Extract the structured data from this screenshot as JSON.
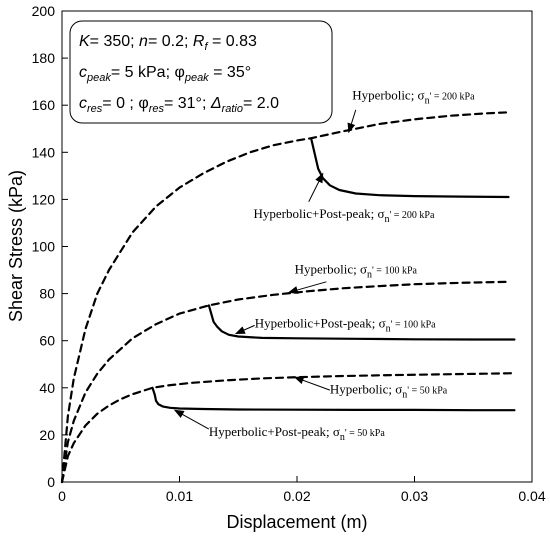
{
  "chart_data": {
    "type": "line",
    "xlabel": "Displacement (m)",
    "ylabel": "Shear Stress (kPa)",
    "xlim": [
      0,
      0.04
    ],
    "ylim": [
      0,
      200
    ],
    "x_ticks": [
      "0",
      "0.01",
      "0.02",
      "0.03",
      "0.04"
    ],
    "y_ticks": [
      "0",
      "20",
      "40",
      "60",
      "80",
      "100",
      "120",
      "140",
      "160",
      "180",
      "200"
    ],
    "grid": false,
    "legend": "none",
    "parameters": {
      "line1": {
        "K": "K",
        "K_val": "= 350; ",
        "n": "n",
        "n_val": "= 0.2; ",
        "Rf": "R",
        "Rf_sub": "f",
        "Rf_val": " = 0.83"
      },
      "line2": {
        "c": "c",
        "c_sub": "peak",
        "c_val": "= 5 kPa; ",
        "phi": "φ",
        "phi_sub": "peak",
        "phi_val": " = 35°"
      },
      "line3": {
        "c": "c",
        "c_sub": "res",
        "c_val": "= 0  ; ",
        "phi": "φ",
        "phi_sub": "res",
        "phi_val": "= 31°; ",
        "delta": "Δ",
        "delta_sub": "ratio",
        "delta_val": "= 2.0"
      }
    },
    "series": [
      {
        "name": "Hyperbolic; σn' = 200 kPa",
        "style": "dashed",
        "x": [
          0,
          0.0005,
          0.001,
          0.002,
          0.003,
          0.004,
          0.006,
          0.008,
          0.01,
          0.012,
          0.014,
          0.016,
          0.018,
          0.02,
          0.0212,
          0.024,
          0.027,
          0.03,
          0.033,
          0.036,
          0.038
        ],
        "y": [
          0,
          28,
          44,
          65,
          80,
          90,
          106,
          117,
          125,
          131,
          136,
          140,
          143,
          145,
          146,
          149,
          152,
          154,
          155.5,
          156.5,
          157
        ]
      },
      {
        "name": "Hyperbolic+Post-peak; σn' = 200 kPa",
        "style": "solid",
        "x": [
          0.0212,
          0.0218,
          0.0222,
          0.0228,
          0.0236,
          0.025,
          0.027,
          0.03,
          0.034,
          0.038
        ],
        "y": [
          146,
          133,
          129,
          126,
          124,
          122.5,
          121.8,
          121.4,
          121.2,
          121
        ]
      },
      {
        "name": "Hyperbolic; σn' = 100 kPa",
        "style": "dashed",
        "x": [
          0,
          0.0005,
          0.001,
          0.002,
          0.003,
          0.004,
          0.006,
          0.008,
          0.01,
          0.0125,
          0.015,
          0.018,
          0.021,
          0.024,
          0.027,
          0.03,
          0.034,
          0.038
        ],
        "y": [
          0,
          17,
          26,
          38,
          46,
          52,
          61,
          67,
          71.5,
          75,
          77.5,
          79.5,
          81,
          82.3,
          83.2,
          84,
          84.6,
          85
        ]
      },
      {
        "name": "Hyperbolic+Post-peak; σn' = 100 kPa",
        "style": "solid",
        "x": [
          0.0125,
          0.0129,
          0.0132,
          0.0136,
          0.0142,
          0.015,
          0.017,
          0.02,
          0.025,
          0.03,
          0.035,
          0.0385
        ],
        "y": [
          75,
          68,
          66,
          64,
          62.5,
          61.8,
          61.2,
          61,
          60.8,
          60.6,
          60.5,
          60.5
        ]
      },
      {
        "name": "Hyperbolic; σn' = 50 kPa",
        "style": "dashed",
        "x": [
          0,
          0.0005,
          0.001,
          0.002,
          0.003,
          0.004,
          0.005,
          0.006,
          0.0077,
          0.009,
          0.011,
          0.014,
          0.017,
          0.02,
          0.024,
          0.028,
          0.032,
          0.036,
          0.0385
        ],
        "y": [
          0,
          11,
          16.5,
          24,
          29,
          32.5,
          35.2,
          37.3,
          40,
          41,
          42.1,
          43.2,
          44,
          44.5,
          45,
          45.4,
          45.7,
          46,
          46.2
        ]
      },
      {
        "name": "Hyperbolic+Post-peak; σn' = 50 kPa",
        "style": "solid",
        "x": [
          0.0077,
          0.0079,
          0.008,
          0.0082,
          0.0086,
          0.0092,
          0.01,
          0.012,
          0.015,
          0.02,
          0.025,
          0.03,
          0.035,
          0.0385
        ],
        "y": [
          40,
          37,
          34.5,
          33,
          32,
          31.5,
          31.2,
          31,
          30.8,
          30.7,
          30.6,
          30.6,
          30.5,
          30.5
        ]
      }
    ],
    "annotations": [
      {
        "main": "Hyperbolic;  σ",
        "sub": "n",
        "tail": "' = 200 kPa",
        "label_at": [
          0.0247,
          162.5
        ],
        "arrow_from": [
          0.025,
          158
        ],
        "arrow_to": [
          0.0244,
          148.5
        ]
      },
      {
        "main": "Hyperbolic+Post-peak;  σ",
        "sub": "n",
        "tail": "' = 200 kPa",
        "label_at": [
          0.0163,
          112
        ],
        "arrow_from": [
          0.021,
          119
        ],
        "arrow_to": [
          0.0222,
          131
        ]
      },
      {
        "main": "Hyperbolic;  σ",
        "sub": "n",
        "tail": "' = 100 kPa",
        "label_at": [
          0.0198,
          88.5
        ],
        "arrow_from": [
          0.0225,
          85
        ],
        "arrow_to": [
          0.0193,
          80.5
        ]
      },
      {
        "main": "Hyperbolic+Post-peak;  σ",
        "sub": "n",
        "tail": "' = 100 kPa",
        "label_at": [
          0.0164,
          65.5
        ],
        "arrow_from": [
          0.0164,
          66.5
        ],
        "arrow_to": [
          0.0148,
          63
        ]
      },
      {
        "main": "Hyperbolic;  σ",
        "sub": "n",
        "tail": "' = 50 kPa",
        "label_at": [
          0.0228,
          37.5
        ],
        "arrow_from": [
          0.0228,
          39
        ],
        "arrow_to": [
          0.0198,
          44.5
        ]
      },
      {
        "main": "Hyperbolic+Post-peak;  σ",
        "sub": "n",
        "tail": "' = 50 kPa",
        "label_at": [
          0.0125,
          19.5
        ],
        "arrow_from": [
          0.0125,
          22.5
        ],
        "arrow_to": [
          0.0096,
          30.5
        ]
      }
    ]
  }
}
